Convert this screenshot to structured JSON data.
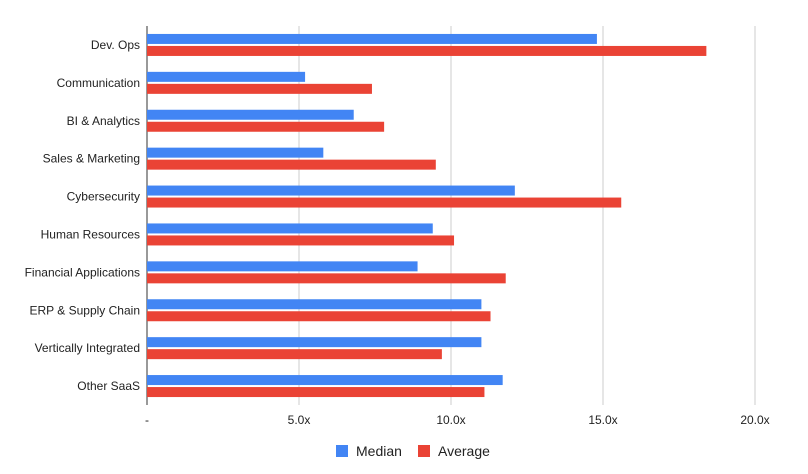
{
  "chart_data": {
    "type": "bar",
    "orientation": "horizontal",
    "categories": [
      "Dev. Ops",
      "Communication",
      "BI & Analytics",
      "Sales & Marketing",
      "Cybersecurity",
      "Human Resources",
      "Financial Applications",
      "ERP & Supply Chain",
      "Vertically Integrated",
      "Other SaaS"
    ],
    "series": [
      {
        "name": "Median",
        "color": "#4285f4",
        "values": [
          14.8,
          5.2,
          6.8,
          5.8,
          12.1,
          9.4,
          8.9,
          11.0,
          11.0,
          11.7
        ]
      },
      {
        "name": "Average",
        "color": "#ea4335",
        "values": [
          18.4,
          7.4,
          7.8,
          9.5,
          15.6,
          10.1,
          11.8,
          11.3,
          9.7,
          11.1
        ]
      }
    ],
    "x_ticks": [
      {
        "value": 0,
        "label": "-"
      },
      {
        "value": 5,
        "label": "5.0x"
      },
      {
        "value": 10,
        "label": "10.0x"
      },
      {
        "value": 15,
        "label": "15.0x"
      },
      {
        "value": 20,
        "label": "20.0x"
      }
    ],
    "xlim": [
      0,
      20
    ],
    "title": "",
    "xlabel": "",
    "ylabel": "",
    "grid": true,
    "legend_position": "bottom"
  }
}
